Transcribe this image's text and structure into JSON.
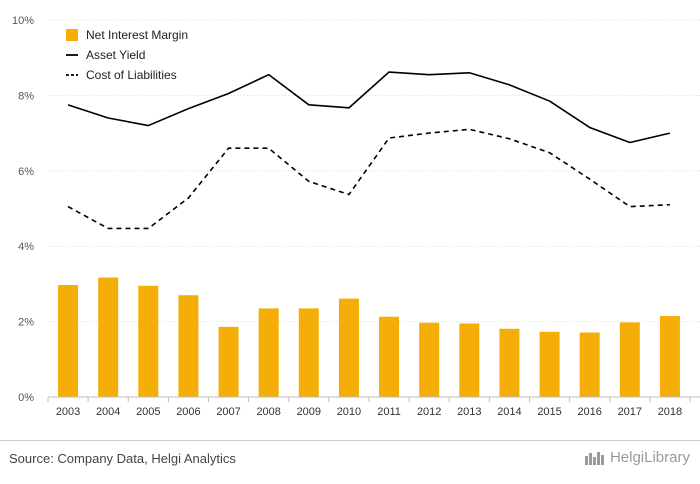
{
  "chart_data": {
    "type": "bar",
    "categories": [
      "2003",
      "2004",
      "2005",
      "2006",
      "2007",
      "2008",
      "2009",
      "2010",
      "2011",
      "2012",
      "2013",
      "2014",
      "2015",
      "2016",
      "2017",
      "2018"
    ],
    "series": [
      {
        "name": "Net Interest Margin",
        "kind": "bar",
        "color": "#F5AE07",
        "values": [
          2.97,
          3.17,
          2.95,
          2.7,
          1.86,
          2.35,
          2.35,
          2.61,
          2.13,
          1.97,
          1.95,
          1.81,
          1.73,
          1.71,
          1.98,
          2.15
        ]
      },
      {
        "name": "Asset Yield",
        "kind": "line",
        "style": "solid",
        "color": "#000000",
        "values": [
          7.75,
          7.4,
          7.2,
          7.65,
          8.05,
          8.55,
          7.75,
          7.67,
          8.62,
          8.55,
          8.6,
          8.28,
          7.85,
          7.15,
          6.75,
          7.0
        ]
      },
      {
        "name": "Cost of Liabilities",
        "kind": "line",
        "style": "dashed",
        "color": "#000000",
        "values": [
          5.05,
          4.47,
          4.47,
          5.28,
          6.6,
          6.6,
          5.72,
          5.37,
          6.87,
          7.0,
          7.1,
          6.85,
          6.48,
          5.78,
          5.05,
          5.1
        ]
      }
    ],
    "y_ticks": [
      "0%",
      "2%",
      "4%",
      "6%",
      "8%",
      "10%"
    ],
    "ylim": [
      0,
      10
    ],
    "grid": true,
    "legend_position": "top-left"
  },
  "footer": {
    "source": "Source: Company Data, Helgi Analytics",
    "brand": "HelgiLibrary"
  }
}
